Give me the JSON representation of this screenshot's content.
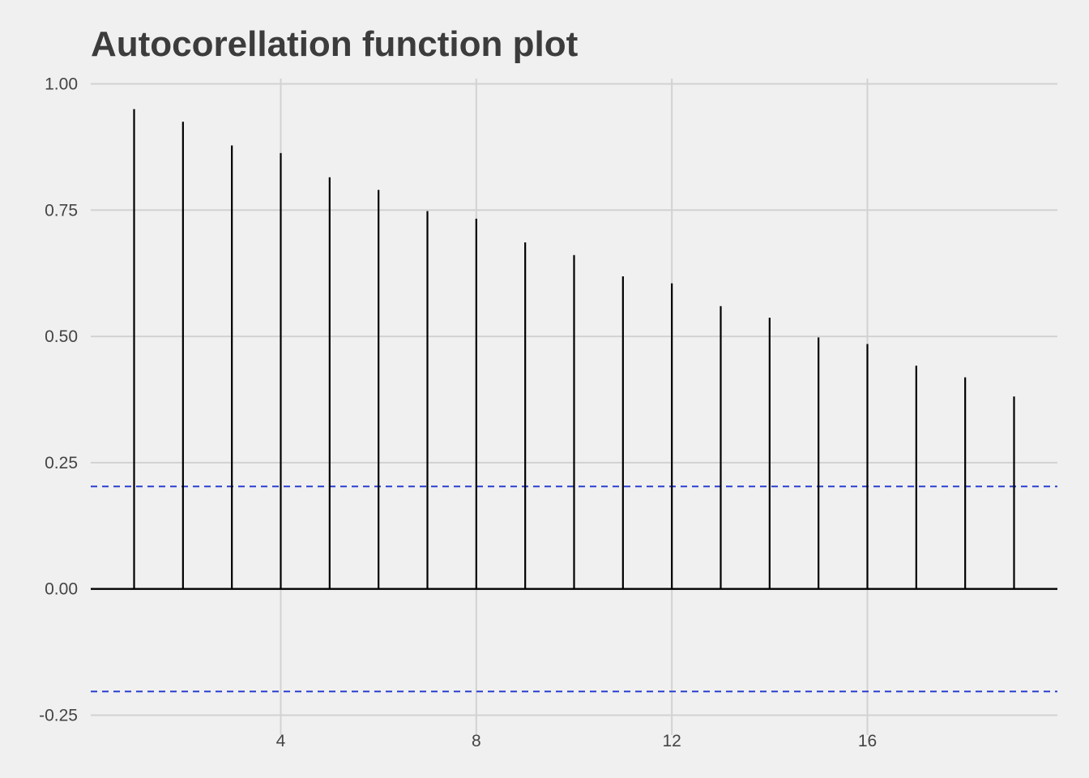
{
  "chart_data": {
    "type": "bar",
    "subtype": "acf-stem",
    "title": "Autocorellation function plot",
    "xlabel": "",
    "ylabel": "",
    "x": [
      1,
      2,
      3,
      4,
      5,
      6,
      7,
      8,
      9,
      10,
      11,
      12,
      13,
      14,
      15,
      16,
      17,
      18,
      19
    ],
    "values": [
      0.95,
      0.925,
      0.878,
      0.863,
      0.815,
      0.79,
      0.748,
      0.733,
      0.686,
      0.661,
      0.619,
      0.605,
      0.56,
      0.537,
      0.498,
      0.485,
      0.442,
      0.419,
      0.381
    ],
    "confidence_bounds": [
      0.203,
      -0.203
    ],
    "xlim": [
      0.1,
      19.9
    ],
    "ylim": [
      -0.25,
      1.0
    ],
    "xticks": [
      4,
      8,
      12,
      16
    ],
    "xtick_labels": [
      "4",
      "8",
      "12",
      "16"
    ],
    "yticks": [
      -0.25,
      0,
      0.25,
      0.5,
      0.75,
      1.0
    ],
    "ytick_labels": [
      "-0.25",
      "0.00",
      "0.25",
      "0.50",
      "0.75",
      "1.00"
    ],
    "grid": true,
    "legend": "none",
    "colors": {
      "background": "#f0f0f0",
      "grid": "#d2d2d2",
      "stem": "#000000",
      "zero_line": "#000000",
      "bound_line": "#2a3fd1",
      "tick_text": "#444444",
      "title_text": "#3c3c3c"
    }
  }
}
